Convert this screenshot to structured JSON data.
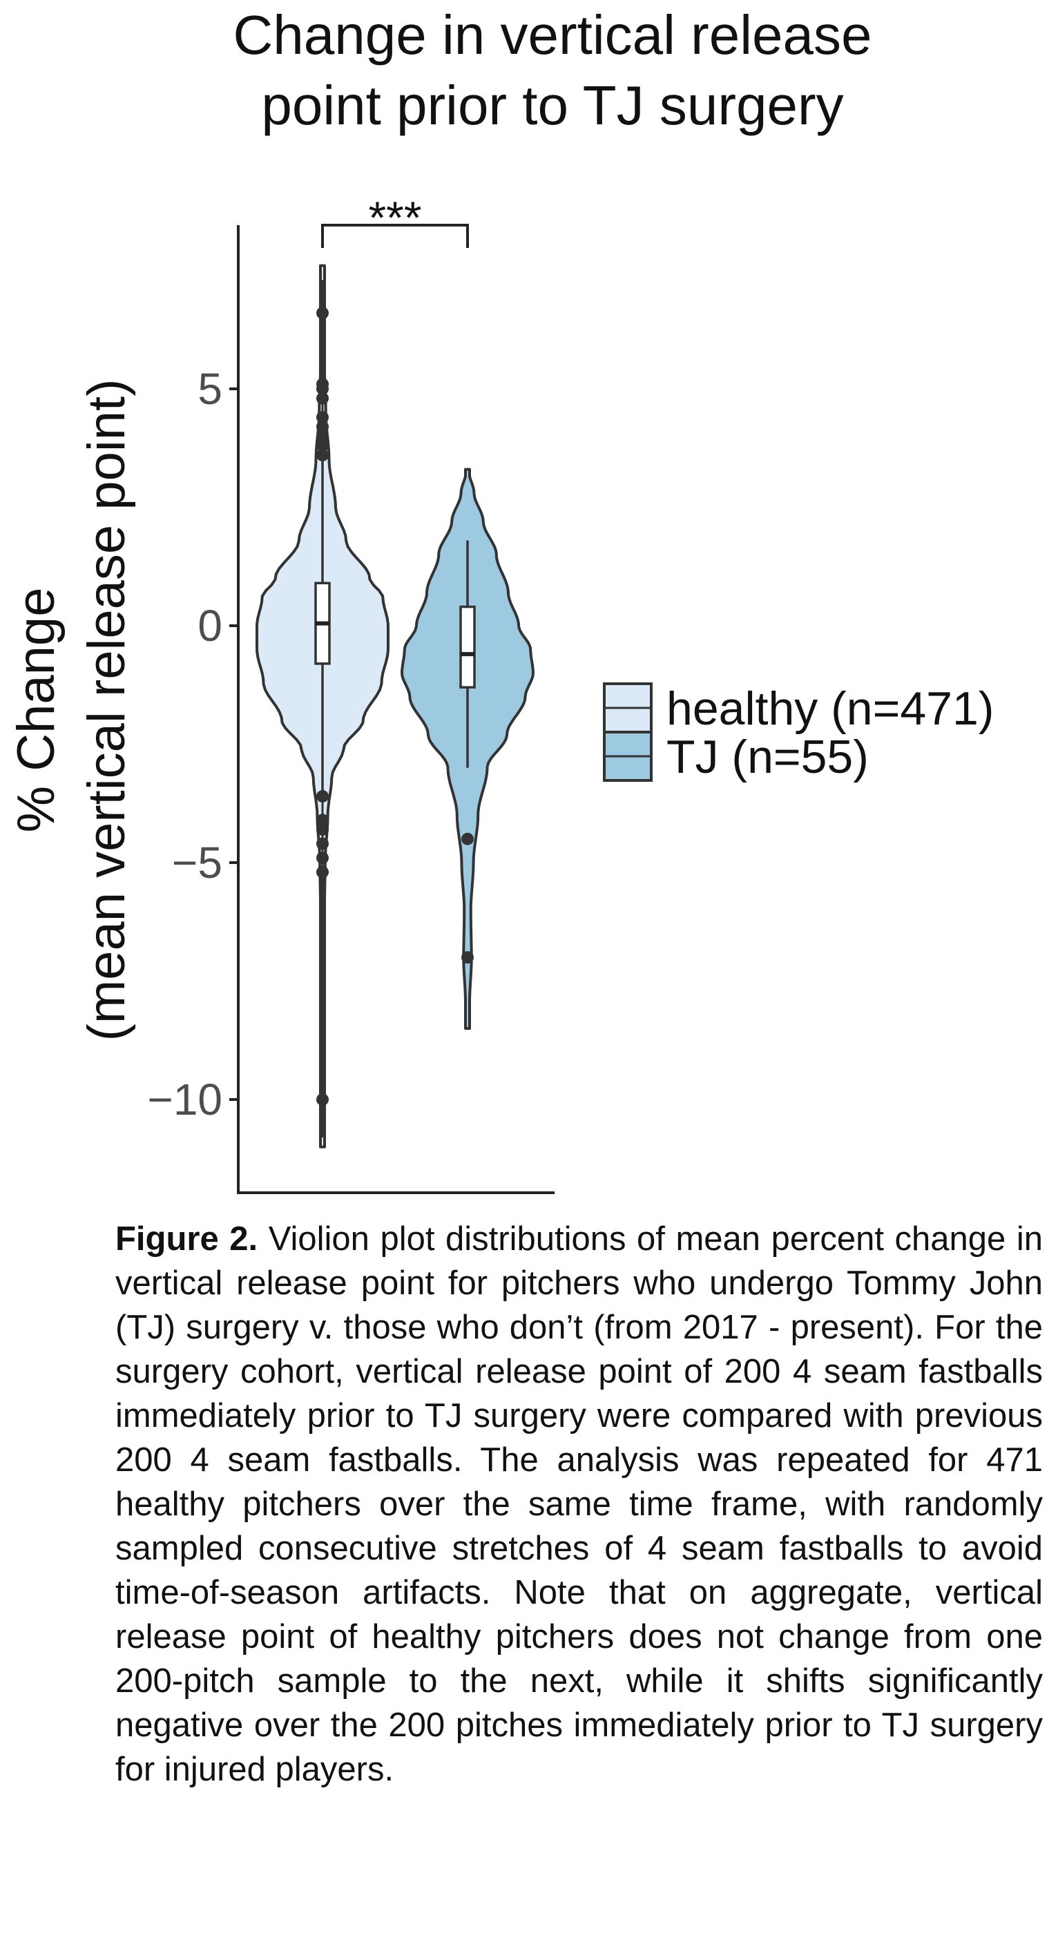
{
  "chart_data": {
    "type": "violin",
    "title": [
      "Change in vertical release",
      "point prior to TJ surgery"
    ],
    "ylabel_line1": "% Change",
    "ylabel_line2": "(mean vertical release point)",
    "ylim": [
      -12,
      8.5
    ],
    "yticks": [
      5,
      0,
      -5,
      -10
    ],
    "ytick_labels": [
      "5",
      "0",
      "−5",
      "−10"
    ],
    "significance": "***",
    "legend_position": "right",
    "groups": [
      {
        "name": "healthy (n=471)",
        "color": "#dce9f6",
        "min": -11,
        "max": 7.6,
        "q1": -0.8,
        "median": 0.05,
        "q3": 0.9,
        "whisker_low": -3.6,
        "whisker_high": 3.5,
        "outliers": [
          6.6,
          5.1,
          5.0,
          4.8,
          4.4,
          4.2,
          4.0,
          3.8,
          3.6,
          -3.6,
          -4.1,
          -4.3,
          -4.6,
          -4.9,
          -5.2,
          -10.0
        ],
        "density": [
          [
            -11,
            0.01
          ],
          [
            -10,
            0.01
          ],
          [
            -8,
            0.02
          ],
          [
            -6,
            0.03
          ],
          [
            -5,
            0.04
          ],
          [
            -4,
            0.08
          ],
          [
            -3.2,
            0.14
          ],
          [
            -2.6,
            0.32
          ],
          [
            -2,
            0.62
          ],
          [
            -1.2,
            0.9
          ],
          [
            -0.5,
            1.0
          ],
          [
            0,
            1.0
          ],
          [
            0.6,
            0.92
          ],
          [
            1,
            0.72
          ],
          [
            1.8,
            0.36
          ],
          [
            2.5,
            0.2
          ],
          [
            3.5,
            0.1
          ],
          [
            4.5,
            0.05
          ],
          [
            5.5,
            0.03
          ],
          [
            6.5,
            0.02
          ],
          [
            7.6,
            0.01
          ]
        ]
      },
      {
        "name": "TJ (n=55)",
        "color": "#9ecae1",
        "min": -8.5,
        "max": 3.3,
        "q1": -1.3,
        "median": -0.6,
        "q3": 0.4,
        "whisker_low": -3.0,
        "whisker_high": 1.8,
        "outliers": [
          -4.5,
          -7.0
        ],
        "density": [
          [
            -8.5,
            0.01
          ],
          [
            -8,
            0.03
          ],
          [
            -7,
            0.06
          ],
          [
            -6,
            0.05
          ],
          [
            -5,
            0.09
          ],
          [
            -4,
            0.16
          ],
          [
            -3,
            0.3
          ],
          [
            -2.3,
            0.6
          ],
          [
            -1.5,
            0.88
          ],
          [
            -1,
            1.0
          ],
          [
            -0.5,
            0.96
          ],
          [
            0,
            0.78
          ],
          [
            0.7,
            0.62
          ],
          [
            1.5,
            0.44
          ],
          [
            2.2,
            0.24
          ],
          [
            2.8,
            0.1
          ],
          [
            3.3,
            0.01
          ]
        ]
      }
    ]
  },
  "caption": {
    "label": "Figure 2.",
    "text": " Violion plot distributions of mean percent change in vertical release point for pitchers who undergo Tommy John (TJ) surgery v. those who don’t (from 2017 - present). For the surgery cohort, vertical release point of 200 4 seam fastballs immediately prior to TJ surgery were compared with previous 200 4 seam fastballs. The analysis was repeated for 471 healthy pitchers over the same time frame, with randomly sampled consecutive stretches of 4 seam fastballs to avoid time-of-season artifacts. Note that on aggregate, vertical release point of healthy pitchers does not change from one 200-pitch sample to the next, while it shifts significantly negative over the 200 pitches immediately prior to TJ surgery for injured players."
  }
}
